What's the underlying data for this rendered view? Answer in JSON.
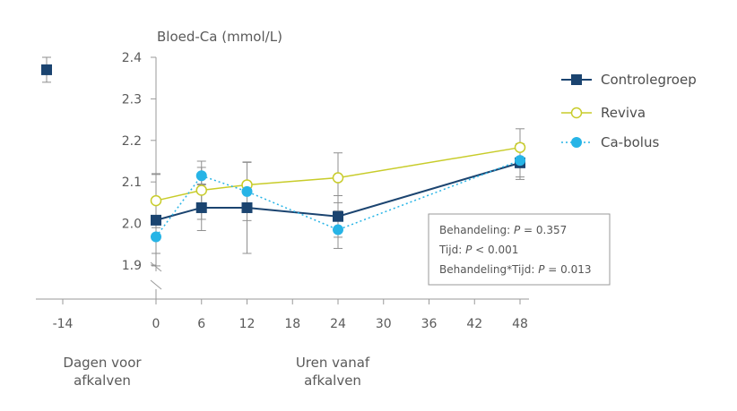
{
  "colors": {
    "control": "#1b4470",
    "reviva": "#c8cc2a",
    "bolus": "#27b4e6",
    "axis": "#9a9a9a",
    "error": "#8f8f8f"
  },
  "chart_data": {
    "type": "line",
    "ylabel": "Bloed-Ca (mmol/L)",
    "ylim": [
      1.9,
      2.4
    ],
    "yticks": [
      "2.4",
      "2.3",
      "2.2",
      "2.1",
      "2.0",
      "1.9"
    ],
    "x_pre_label": "-14",
    "xticks": [
      "0",
      "6",
      "12",
      "18",
      "24",
      "30",
      "36",
      "42",
      "48"
    ],
    "x_captions": {
      "pre_line1": "Dagen voor",
      "pre_line2": "afkalven",
      "post_line1": "Uren vanaf",
      "post_line2": "afkalven"
    },
    "series": [
      {
        "name": "Controlegroep",
        "marker": "filled-square",
        "pre": {
          "x": -14,
          "y": 2.37,
          "err": 0.03
        },
        "x": [
          0,
          6,
          12,
          24,
          48
        ],
        "y": [
          2.008,
          2.038,
          2.038,
          2.017,
          2.146
        ],
        "err": [
          0.11,
          0.055,
          0.11,
          0.05,
          0.04
        ]
      },
      {
        "name": "Reviva",
        "marker": "open-circle",
        "x": [
          0,
          6,
          12,
          24,
          48
        ],
        "y": [
          2.055,
          2.08,
          2.093,
          2.11,
          2.183
        ],
        "err": [
          0.065,
          0.07,
          0.055,
          0.06,
          0.045
        ]
      },
      {
        "name": "Ca-bolus",
        "marker": "filled-circle",
        "x": [
          0,
          6,
          12,
          24,
          48
        ],
        "y": [
          1.968,
          2.115,
          2.077,
          1.985,
          2.152
        ],
        "err": [
          0.04,
          0.02,
          0.07,
          0.045,
          0.04
        ]
      }
    ],
    "annotations": [
      {
        "text_pre": "Behandeling: ",
        "italic": "P",
        "text_post": " = 0.357"
      },
      {
        "text_pre": "Tijd: ",
        "italic": "P",
        "text_post": " < 0.001"
      },
      {
        "text_pre": "Behandeling*Tijd: ",
        "italic": "P",
        "text_post": " = 0.013"
      }
    ]
  }
}
